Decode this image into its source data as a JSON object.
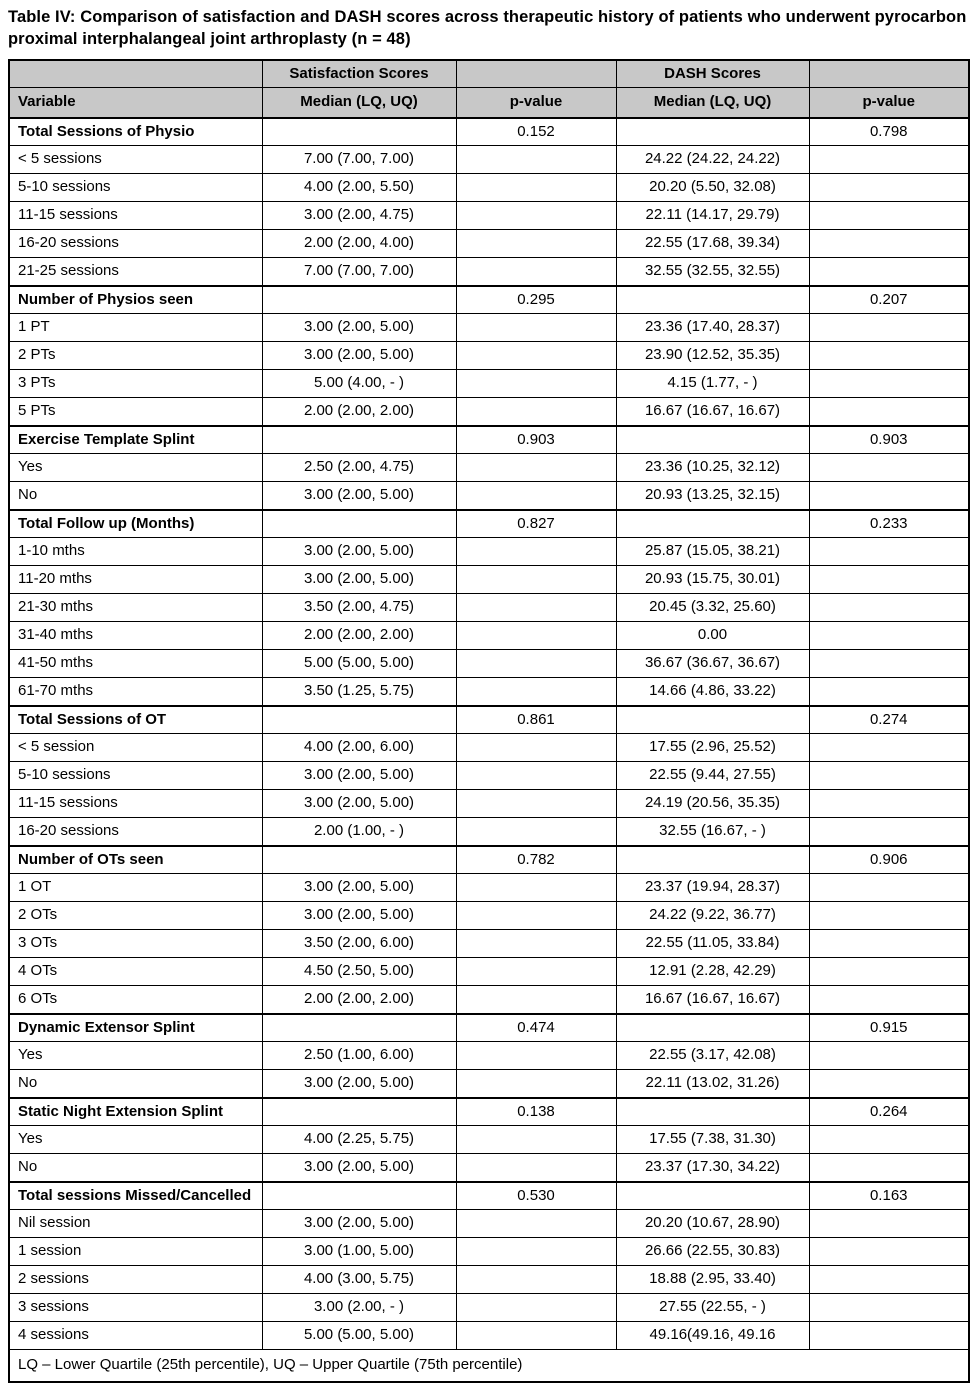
{
  "title": "Table IV: Comparison of satisfaction and DASH scores across therapeutic history of patients who underwent pyrocarbon proximal interphalangeal joint arthroplasty (n = 48)",
  "colors": {
    "header_bg": "#c8c8c8",
    "border": "#000000",
    "background": "#ffffff"
  },
  "table": {
    "header_groups": [
      "",
      "Satisfaction Scores",
      "",
      "DASH Scores",
      ""
    ],
    "columns": [
      "Variable",
      "Median (LQ, UQ)",
      "p-value",
      "Median (LQ, UQ)",
      "p-value"
    ],
    "rows": [
      {
        "type": "section",
        "variable": "Total Sessions of Physio",
        "sat_median": "",
        "sat_p": "0.152",
        "dash_median": "",
        "dash_p": "0.798"
      },
      {
        "type": "data",
        "variable": "< 5 sessions",
        "sat_median": "7.00 (7.00, 7.00)",
        "sat_p": "",
        "dash_median": "24.22 (24.22, 24.22)",
        "dash_p": ""
      },
      {
        "type": "data",
        "variable": "5-10 sessions",
        "sat_median": "4.00 (2.00, 5.50)",
        "sat_p": "",
        "dash_median": "20.20 (5.50, 32.08)",
        "dash_p": ""
      },
      {
        "type": "data",
        "variable": "11-15 sessions",
        "sat_median": "3.00 (2.00, 4.75)",
        "sat_p": "",
        "dash_median": "22.11 (14.17, 29.79)",
        "dash_p": ""
      },
      {
        "type": "data",
        "variable": "16-20 sessions",
        "sat_median": "2.00 (2.00, 4.00)",
        "sat_p": "",
        "dash_median": "22.55 (17.68, 39.34)",
        "dash_p": ""
      },
      {
        "type": "data",
        "variable": "21-25 sessions",
        "sat_median": "7.00 (7.00, 7.00)",
        "sat_p": "",
        "dash_median": "32.55 (32.55, 32.55)",
        "dash_p": ""
      },
      {
        "type": "section",
        "variable": "Number of Physios seen",
        "sat_median": "",
        "sat_p": "0.295",
        "dash_median": "",
        "dash_p": "0.207"
      },
      {
        "type": "data",
        "variable": "1 PT",
        "sat_median": "3.00 (2.00, 5.00)",
        "sat_p": "",
        "dash_median": "23.36 (17.40, 28.37)",
        "dash_p": ""
      },
      {
        "type": "data",
        "variable": "2 PTs",
        "sat_median": "3.00 (2.00, 5.00)",
        "sat_p": "",
        "dash_median": "23.90 (12.52, 35.35)",
        "dash_p": ""
      },
      {
        "type": "data",
        "variable": "3 PTs",
        "sat_median": "5.00 (4.00, - )",
        "sat_p": "",
        "dash_median": "4.15 (1.77, - )",
        "dash_p": ""
      },
      {
        "type": "data",
        "variable": "5 PTs",
        "sat_median": "2.00 (2.00, 2.00)",
        "sat_p": "",
        "dash_median": "16.67 (16.67, 16.67)",
        "dash_p": ""
      },
      {
        "type": "section",
        "variable": "Exercise Template Splint",
        "sat_median": "",
        "sat_p": "0.903",
        "dash_median": "",
        "dash_p": "0.903"
      },
      {
        "type": "data",
        "variable": "Yes",
        "sat_median": "2.50 (2.00, 4.75)",
        "sat_p": "",
        "dash_median": "23.36 (10.25, 32.12)",
        "dash_p": ""
      },
      {
        "type": "data",
        "variable": "No",
        "sat_median": "3.00 (2.00, 5.00)",
        "sat_p": "",
        "dash_median": "20.93 (13.25, 32.15)",
        "dash_p": ""
      },
      {
        "type": "section",
        "variable": "Total Follow up  (Months)",
        "sat_median": "",
        "sat_p": "0.827",
        "dash_median": "",
        "dash_p": "0.233"
      },
      {
        "type": "data",
        "variable": "1-10 mths",
        "sat_median": "3.00 (2.00, 5.00)",
        "sat_p": "",
        "dash_median": "25.87 (15.05, 38.21)",
        "dash_p": ""
      },
      {
        "type": "data",
        "variable": "11-20 mths",
        "sat_median": "3.00 (2.00, 5.00)",
        "sat_p": "",
        "dash_median": "20.93 (15.75, 30.01)",
        "dash_p": ""
      },
      {
        "type": "data",
        "variable": "21-30 mths",
        "sat_median": "3.50 (2.00, 4.75)",
        "sat_p": "",
        "dash_median": "20.45 (3.32, 25.60)",
        "dash_p": ""
      },
      {
        "type": "data",
        "variable": "31-40 mths",
        "sat_median": "2.00 (2.00, 2.00)",
        "sat_p": "",
        "dash_median": "0.00",
        "dash_p": ""
      },
      {
        "type": "data",
        "variable": "41-50 mths",
        "sat_median": "5.00 (5.00, 5.00)",
        "sat_p": "",
        "dash_median": "36.67 (36.67, 36.67)",
        "dash_p": ""
      },
      {
        "type": "data",
        "variable": "61-70 mths",
        "sat_median": "3.50 (1.25, 5.75)",
        "sat_p": "",
        "dash_median": "14.66 (4.86, 33.22)",
        "dash_p": ""
      },
      {
        "type": "section",
        "variable": "Total Sessions of OT",
        "sat_median": "",
        "sat_p": "0.861",
        "dash_median": "",
        "dash_p": "0.274"
      },
      {
        "type": "data",
        "variable": "< 5 session",
        "sat_median": "4.00 (2.00, 6.00)",
        "sat_p": "",
        "dash_median": "17.55 (2.96, 25.52)",
        "dash_p": ""
      },
      {
        "type": "data",
        "variable": "5-10 sessions",
        "sat_median": "3.00 (2.00, 5.00)",
        "sat_p": "",
        "dash_median": "22.55 (9.44, 27.55)",
        "dash_p": ""
      },
      {
        "type": "data",
        "variable": "11-15 sessions",
        "sat_median": "3.00 (2.00, 5.00)",
        "sat_p": "",
        "dash_median": "24.19 (20.56, 35.35)",
        "dash_p": ""
      },
      {
        "type": "data",
        "variable": "16-20 sessions",
        "sat_median": "2.00 (1.00, - )",
        "sat_p": "",
        "dash_median": "32.55 (16.67, - )",
        "dash_p": ""
      },
      {
        "type": "section",
        "variable": "Number of OTs seen",
        "sat_median": "",
        "sat_p": "0.782",
        "dash_median": "",
        "dash_p": "0.906"
      },
      {
        "type": "data",
        "variable": "1  OT",
        "sat_median": "3.00 (2.00, 5.00)",
        "sat_p": "",
        "dash_median": "23.37 (19.94, 28.37)",
        "dash_p": ""
      },
      {
        "type": "data",
        "variable": "2 OTs",
        "sat_median": "3.00 (2.00, 5.00)",
        "sat_p": "",
        "dash_median": "24.22 (9.22, 36.77)",
        "dash_p": ""
      },
      {
        "type": "data",
        "variable": "3 OTs",
        "sat_median": "3.50 (2.00, 6.00)",
        "sat_p": "",
        "dash_median": "22.55 (11.05, 33.84)",
        "dash_p": ""
      },
      {
        "type": "data",
        "variable": "4 OTs",
        "sat_median": "4.50 (2.50, 5.00)",
        "sat_p": "",
        "dash_median": "12.91 (2.28, 42.29)",
        "dash_p": ""
      },
      {
        "type": "data",
        "variable": "6 OTs",
        "sat_median": "2.00 (2.00, 2.00)",
        "sat_p": "",
        "dash_median": "16.67 (16.67, 16.67)",
        "dash_p": ""
      },
      {
        "type": "section",
        "variable": "Dynamic Extensor Splint",
        "sat_median": "",
        "sat_p": "0.474",
        "dash_median": "",
        "dash_p": "0.915"
      },
      {
        "type": "data",
        "variable": "Yes",
        "sat_median": "2.50 (1.00, 6.00)",
        "sat_p": "",
        "dash_median": "22.55 (3.17, 42.08)",
        "dash_p": ""
      },
      {
        "type": "data",
        "variable": "No",
        "sat_median": "3.00 (2.00, 5.00)",
        "sat_p": "",
        "dash_median": "22.11 (13.02, 31.26)",
        "dash_p": ""
      },
      {
        "type": "section",
        "variable": "Static Night Extension Splint",
        "sat_median": "",
        "sat_p": "0.138",
        "dash_median": "",
        "dash_p": "0.264"
      },
      {
        "type": "data",
        "variable": "Yes",
        "sat_median": "4.00 (2.25, 5.75)",
        "sat_p": "",
        "dash_median": "17.55 (7.38, 31.30)",
        "dash_p": ""
      },
      {
        "type": "data",
        "variable": "No",
        "sat_median": "3.00 (2.00, 5.00)",
        "sat_p": "",
        "dash_median": "23.37 (17.30, 34.22)",
        "dash_p": ""
      },
      {
        "type": "section",
        "variable": "Total sessions Missed/Cancelled",
        "sat_median": "",
        "sat_p": "0.530",
        "dash_median": "",
        "dash_p": "0.163"
      },
      {
        "type": "data",
        "variable": "Nil session",
        "sat_median": "3.00 (2.00, 5.00)",
        "sat_p": "",
        "dash_median": "20.20 (10.67, 28.90)",
        "dash_p": ""
      },
      {
        "type": "data",
        "variable": "1 session",
        "sat_median": "3.00 (1.00, 5.00)",
        "sat_p": "",
        "dash_median": "26.66 (22.55, 30.83)",
        "dash_p": ""
      },
      {
        "type": "data",
        "variable": "2 sessions",
        "sat_median": "4.00 (3.00, 5.75)",
        "sat_p": "",
        "dash_median": "18.88 (2.95, 33.40)",
        "dash_p": ""
      },
      {
        "type": "data",
        "variable": "3 sessions",
        "sat_median": "3.00 (2.00, - )",
        "sat_p": "",
        "dash_median": "27.55 (22.55, - )",
        "dash_p": ""
      },
      {
        "type": "data",
        "variable": "4 sessions",
        "sat_median": "5.00 (5.00, 5.00)",
        "sat_p": "",
        "dash_median": "49.16(49.16, 49.16",
        "dash_p": ""
      }
    ],
    "footnote": "LQ – Lower Quartile (25th percentile), UQ – Upper Quartile (75th percentile)"
  }
}
